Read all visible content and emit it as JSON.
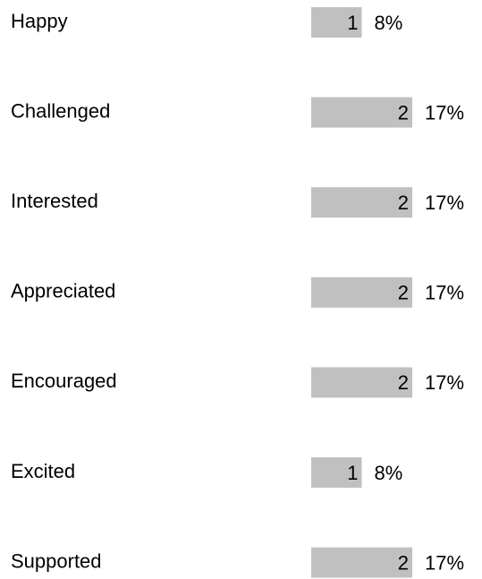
{
  "chart_data": {
    "type": "bar",
    "orientation": "horizontal",
    "categories": [
      "Happy",
      "Challenged",
      "Interested",
      "Appreciated",
      "Encouraged",
      "Excited",
      "Supported"
    ],
    "values": [
      1,
      2,
      2,
      2,
      2,
      1,
      2
    ],
    "percent_values": [
      8,
      17,
      17,
      17,
      17,
      8,
      17
    ],
    "percent_labels": [
      "8%",
      "17%",
      "17%",
      "17%",
      "17%",
      "8%",
      "17%"
    ],
    "color": "#c0c0c0"
  }
}
